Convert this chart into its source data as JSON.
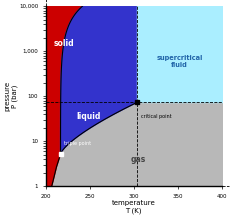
{
  "xmin": 200,
  "xmax": 400,
  "ymin": 1,
  "ymax": 10000,
  "xticks": [
    200,
    250,
    300,
    350,
    400
  ],
  "yticks": [
    1,
    10,
    100,
    1000,
    10000
  ],
  "ytick_labels": [
    "1",
    "10",
    "100",
    "1,000",
    "10,000"
  ],
  "xlabel": "temperature\nT (K)",
  "ylabel": "pressure\nP (bar)",
  "triple_point_T": 216.6,
  "triple_point_P": 5.18,
  "critical_point_T": 304.2,
  "critical_point_P": 73.8,
  "solid_color": "#cc0000",
  "liquid_color": "#3333cc",
  "gas_color": "#b8b8b8",
  "supercritical_color": "#aaeeff",
  "label_solid": "solid",
  "label_liquid": "liquid",
  "label_gas": "gas",
  "label_supercritical": "supercritical\nfluid",
  "label_triple": "triple point",
  "label_critical": "critical point",
  "figsize": [
    2.31,
    2.18
  ],
  "dpi": 100
}
